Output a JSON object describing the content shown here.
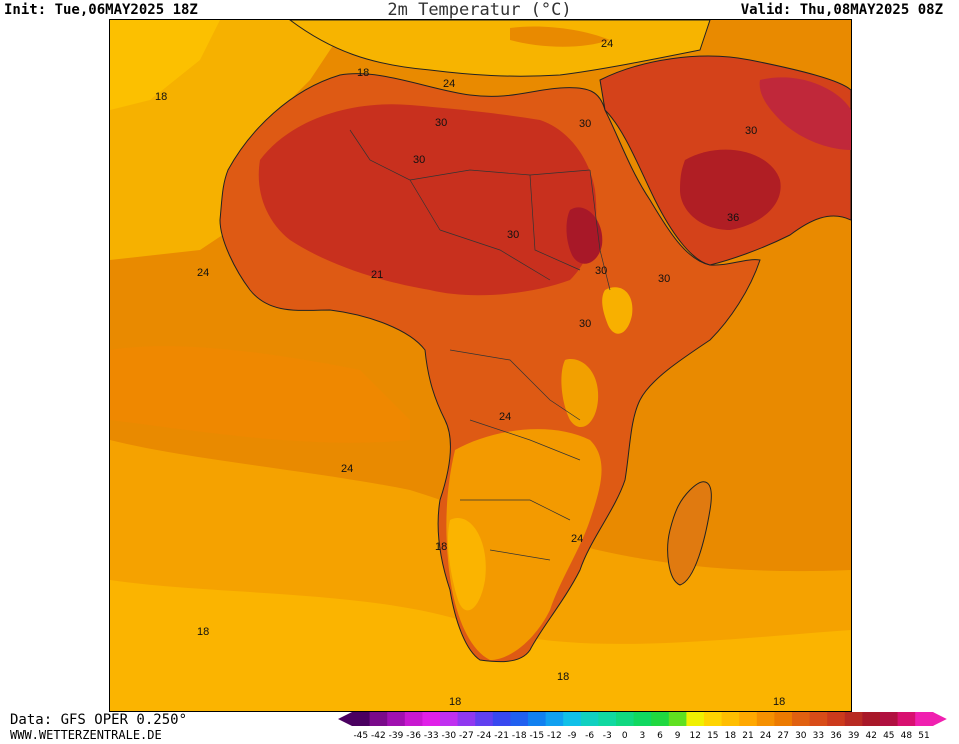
{
  "header": {
    "init": "Init: Tue,06MAY2025 18Z",
    "title": "2m Temperatur (°C)",
    "valid": "Valid: Thu,08MAY2025 08Z"
  },
  "map": {
    "region": "Africa",
    "contour_labels": [
      {
        "text": "18",
        "pos": "north-atlantic"
      },
      {
        "text": "18",
        "pos": "morocco"
      },
      {
        "text": "24",
        "pos": "libya"
      },
      {
        "text": "30",
        "pos": "algeria"
      },
      {
        "text": "30",
        "pos": "niger"
      },
      {
        "text": "30",
        "pos": "egypt"
      },
      {
        "text": "24",
        "pos": "turkey"
      },
      {
        "text": "30",
        "pos": "saudi-arabia"
      },
      {
        "text": "36",
        "pos": "arabian-sea"
      },
      {
        "text": "24",
        "pos": "west-atlantic"
      },
      {
        "text": "30",
        "pos": "chad"
      },
      {
        "text": "21",
        "pos": "burkina"
      },
      {
        "text": "30",
        "pos": "sudan"
      },
      {
        "text": "30",
        "pos": "somalia"
      },
      {
        "text": "30",
        "pos": "uganda"
      },
      {
        "text": "24",
        "pos": "congo"
      },
      {
        "text": "24",
        "pos": "south-atlantic"
      },
      {
        "text": "18",
        "pos": "namibia"
      },
      {
        "text": "24",
        "pos": "mozambique"
      },
      {
        "text": "18",
        "pos": "far-south-atlantic"
      },
      {
        "text": "18",
        "pos": "cape"
      },
      {
        "text": "18",
        "pos": "southern-ocean-west"
      },
      {
        "text": "18",
        "pos": "southern-ocean-east"
      }
    ]
  },
  "footer": {
    "source": "Data: GFS OPER 0.250°",
    "site": "WWW.WETTERZENTRALE.DE"
  },
  "legend": {
    "ticks": [
      "-45",
      "-42",
      "-39",
      "-36",
      "-33",
      "-30",
      "-27",
      "-24",
      "-21",
      "-18",
      "-15",
      "-12",
      "-9",
      "-6",
      "-3",
      "0",
      "3",
      "6",
      "9",
      "12",
      "15",
      "18",
      "21",
      "24",
      "27",
      "30",
      "33",
      "36",
      "39",
      "42",
      "45",
      "48",
      "51"
    ],
    "colors": [
      "#4a0060",
      "#7a0a8a",
      "#a010b0",
      "#c818d0",
      "#e020e8",
      "#c030f0",
      "#9038f0",
      "#6040f0",
      "#3848f0",
      "#2060f0",
      "#1080f0",
      "#10a0f0",
      "#10c0e8",
      "#10d0c0",
      "#10d8a0",
      "#10d880",
      "#10d860",
      "#20d840",
      "#60e020",
      "#f0f000",
      "#ffd400",
      "#ffbe00",
      "#ffa800",
      "#f59000",
      "#ec7a00",
      "#e06010",
      "#d84c18",
      "#cc3a1c",
      "#b82a22",
      "#a81828",
      "#b01040",
      "#d81070",
      "#f020b0"
    ]
  }
}
